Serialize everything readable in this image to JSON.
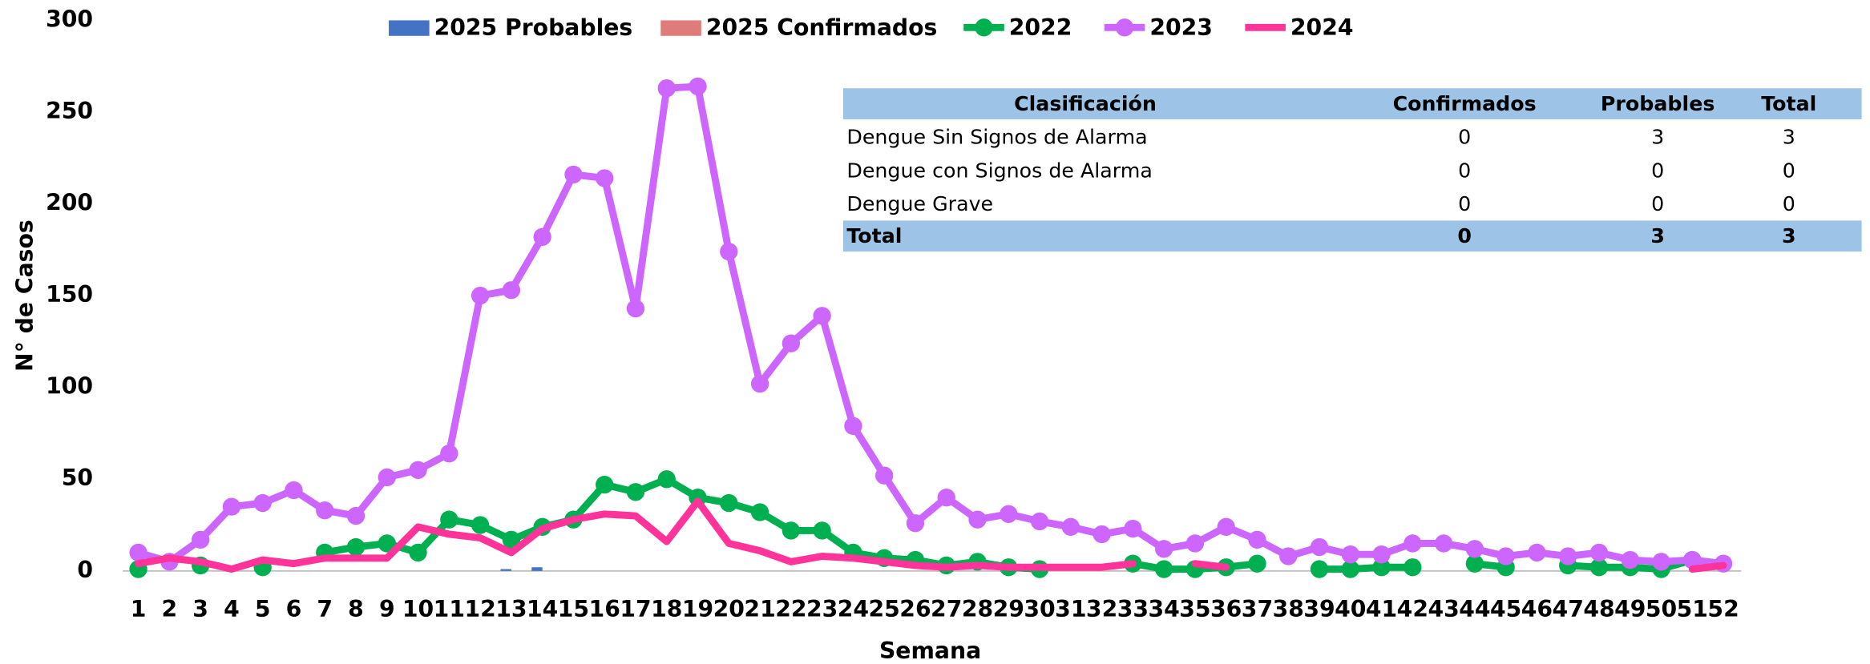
{
  "chart_data": {
    "type": "line",
    "xlabel": "Semana",
    "ylabel": "N° de Casos",
    "categories": [
      1,
      2,
      3,
      4,
      5,
      6,
      7,
      8,
      9,
      10,
      11,
      12,
      13,
      14,
      15,
      16,
      17,
      18,
      19,
      20,
      21,
      22,
      23,
      24,
      25,
      26,
      27,
      28,
      29,
      30,
      31,
      32,
      33,
      34,
      35,
      36,
      37,
      38,
      39,
      40,
      41,
      42,
      43,
      44,
      45,
      46,
      47,
      48,
      49,
      50,
      51,
      52
    ],
    "ylim": [
      0,
      300
    ],
    "yticks": [
      0,
      50,
      100,
      150,
      200,
      250,
      300
    ],
    "series": [
      {
        "name": "2025 Probables",
        "type": "bar",
        "color": "#4472c4",
        "values": [
          0,
          0,
          0,
          0,
          0,
          0,
          0,
          0,
          0,
          0,
          0,
          0,
          1,
          2,
          null,
          null,
          null,
          null,
          null,
          null,
          null,
          null,
          null,
          null,
          null,
          null,
          null,
          null,
          null,
          null,
          null,
          null,
          null,
          null,
          null,
          null,
          null,
          null,
          null,
          null,
          null,
          null,
          null,
          null,
          null,
          null,
          null,
          null,
          null,
          null,
          null,
          null
        ]
      },
      {
        "name": "2025 Confirmados",
        "type": "bar",
        "color": "#e07b7b",
        "values": [
          0,
          0,
          0,
          0,
          0,
          0,
          0,
          0,
          0,
          0,
          0,
          0,
          0,
          0,
          null,
          null,
          null,
          null,
          null,
          null,
          null,
          null,
          null,
          null,
          null,
          null,
          null,
          null,
          null,
          null,
          null,
          null,
          null,
          null,
          null,
          null,
          null,
          null,
          null,
          null,
          null,
          null,
          null,
          null,
          null,
          null,
          null,
          null,
          null,
          null,
          null,
          null
        ]
      },
      {
        "name": "2022",
        "type": "line",
        "color": "#00b050",
        "markers": true,
        "values": [
          1,
          null,
          3,
          null,
          2,
          null,
          10,
          13,
          15,
          10,
          28,
          25,
          17,
          24,
          28,
          47,
          43,
          50,
          40,
          37,
          32,
          22,
          22,
          10,
          7,
          6,
          3,
          5,
          2,
          1,
          null,
          null,
          4,
          1,
          1,
          2,
          4,
          null,
          1,
          1,
          2,
          2,
          null,
          4,
          2,
          null,
          3,
          2,
          2,
          1,
          6,
          null
        ]
      },
      {
        "name": "2023",
        "type": "line",
        "color": "#cc66ff",
        "markers": true,
        "values": [
          10,
          5,
          17,
          35,
          37,
          44,
          33,
          30,
          51,
          55,
          64,
          150,
          153,
          182,
          216,
          214,
          143,
          263,
          264,
          174,
          102,
          124,
          139,
          79,
          52,
          26,
          40,
          28,
          31,
          27,
          24,
          20,
          23,
          12,
          15,
          24,
          17,
          8,
          13,
          9,
          9,
          15,
          15,
          12,
          8,
          10,
          8,
          10,
          6,
          5,
          6,
          4
        ]
      },
      {
        "name": "2024",
        "type": "line",
        "color": "#ff3399",
        "markers": false,
        "values": [
          4,
          7,
          5,
          1,
          6,
          4,
          7,
          7,
          7,
          24,
          20,
          18,
          10,
          23,
          28,
          31,
          30,
          16,
          38,
          15,
          11,
          5,
          8,
          7,
          5,
          3,
          2,
          3,
          2,
          2,
          2,
          2,
          4,
          null,
          4,
          2,
          null,
          null,
          null,
          null,
          null,
          null,
          null,
          null,
          null,
          null,
          null,
          null,
          null,
          null,
          1,
          3
        ]
      }
    ]
  },
  "table": {
    "columns": [
      "Clasificación",
      "Confirmados",
      "Probables",
      "Total"
    ],
    "rows": [
      [
        "Dengue Sin Signos de Alarma",
        0,
        3,
        3
      ],
      [
        "Dengue con Signos de Alarma",
        0,
        0,
        0
      ],
      [
        "Dengue Grave",
        0,
        0,
        0
      ]
    ],
    "total": [
      "Total",
      0,
      3,
      3
    ]
  }
}
